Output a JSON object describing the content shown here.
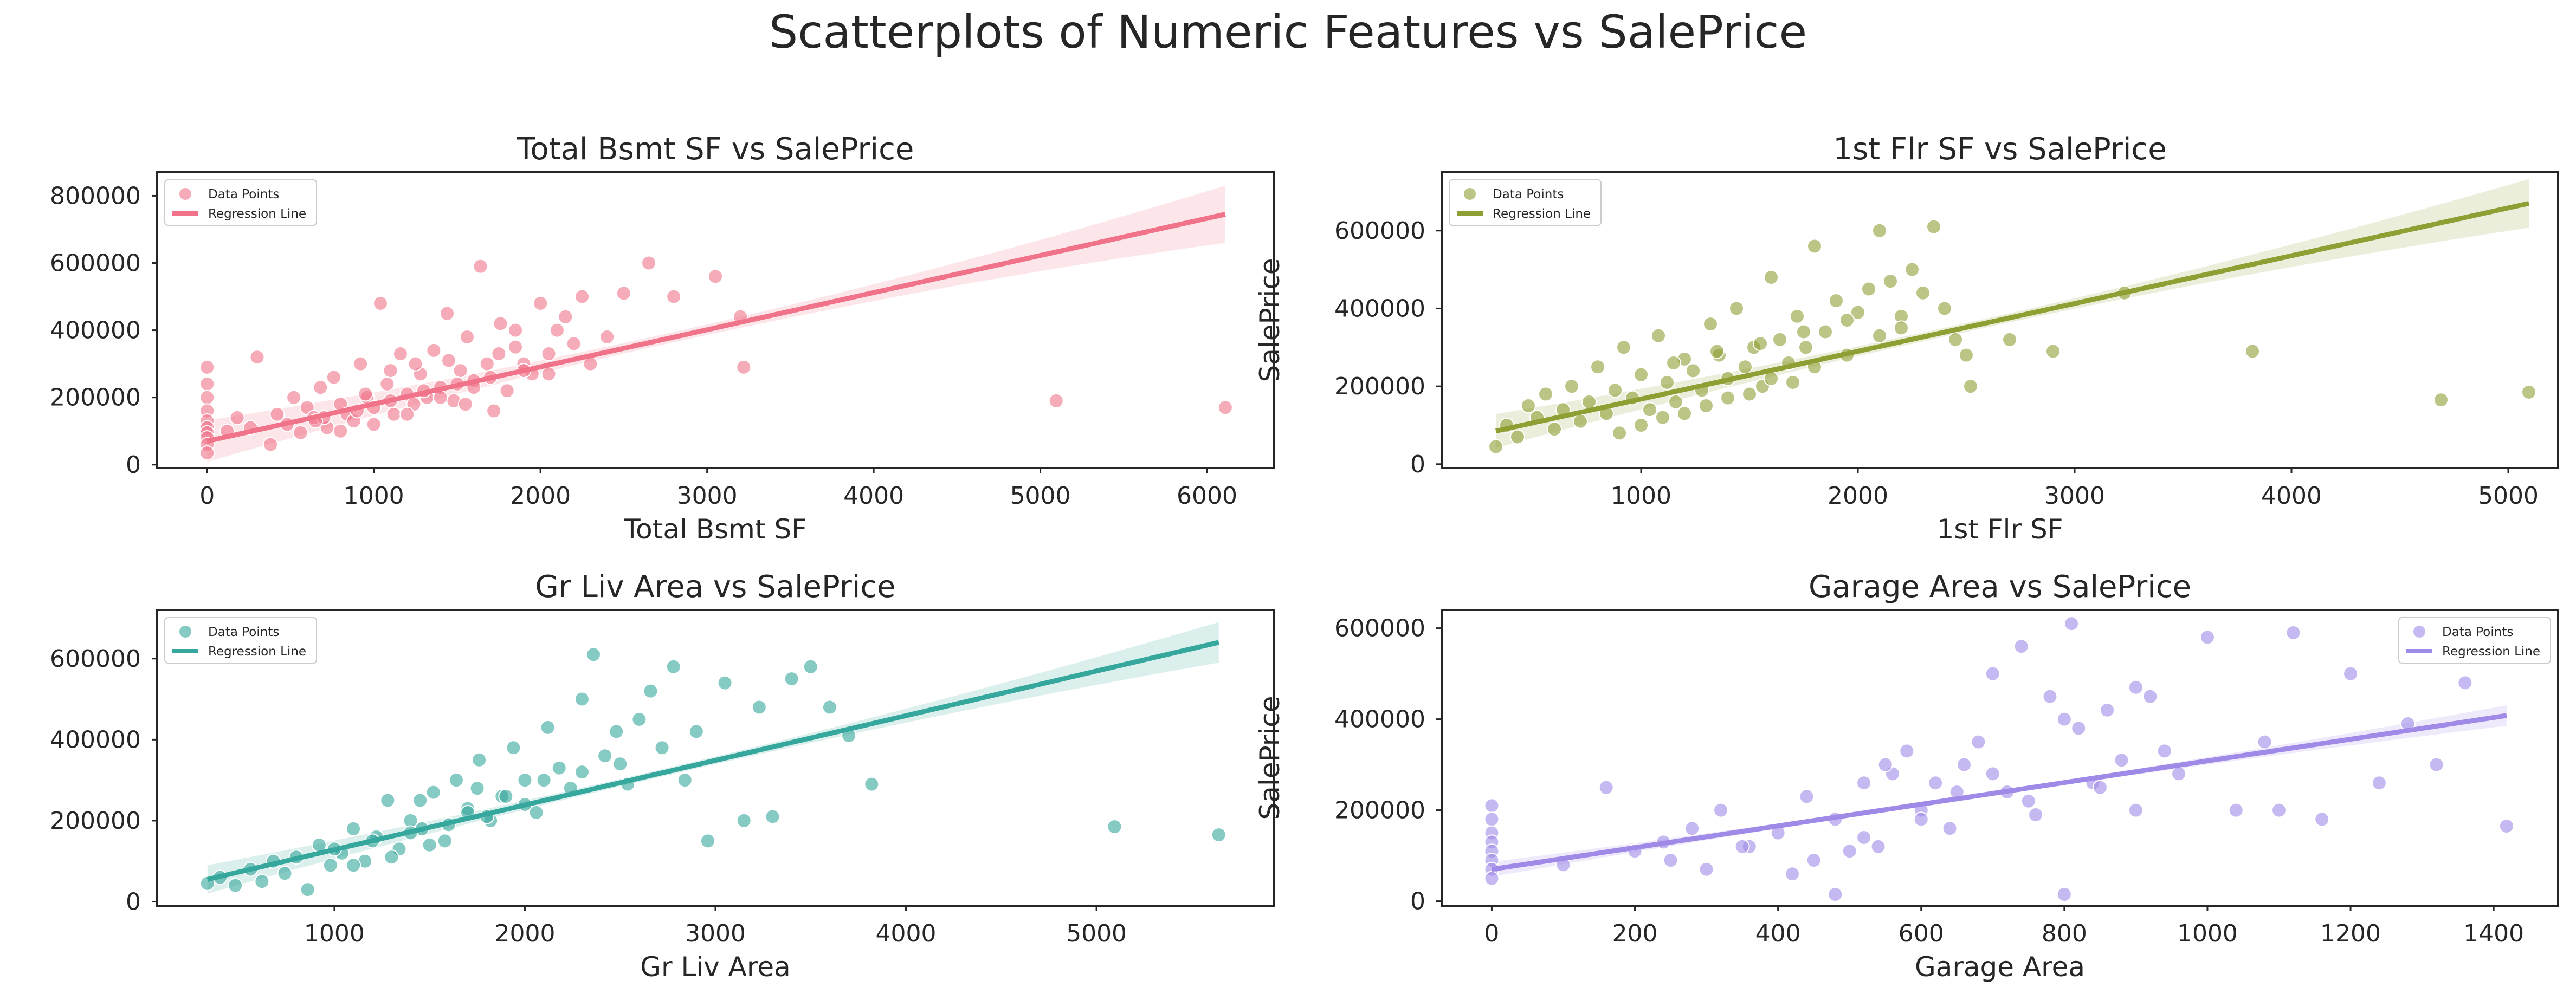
{
  "title": "Scatterplots of Numeric Features vs SalePrice",
  "chart_data": [
    {
      "type": "scatter",
      "title": "Total Bsmt SF vs SalePrice",
      "xlabel": "Total Bsmt SF",
      "ylabel": "SalePrice",
      "xlim": [
        -300,
        6400
      ],
      "ylim": [
        -10000,
        870000
      ],
      "xticks": [
        0,
        1000,
        2000,
        3000,
        4000,
        5000,
        6000
      ],
      "yticks": [
        0,
        200000,
        400000,
        600000,
        800000
      ],
      "color": "#f07389",
      "legend": {
        "position": "top-left",
        "entries": [
          "Data Points",
          "Regression Line"
        ]
      },
      "grid": false,
      "regression": {
        "x": [
          0,
          6110
        ],
        "y": [
          70000,
          745000
        ],
        "ci_at_end": [
          650000,
          820000
        ]
      },
      "series": [
        {
          "name": "Data Points",
          "x": [
            0,
            0,
            0,
            0,
            0,
            0,
            0,
            0,
            0,
            0,
            120,
            180,
            260,
            300,
            380,
            420,
            480,
            520,
            560,
            600,
            640,
            680,
            720,
            760,
            800,
            840,
            880,
            920,
            960,
            1000,
            1040,
            1080,
            1120,
            1160,
            1200,
            1240,
            1280,
            1320,
            1360,
            1400,
            1440,
            1480,
            1520,
            1560,
            1600,
            1640,
            1680,
            1720,
            1760,
            1800,
            1850,
            1900,
            1950,
            2000,
            2050,
            2100,
            2150,
            2200,
            2250,
            2300,
            2400,
            2500,
            2650,
            2800,
            3050,
            3200,
            3220,
            5095,
            6110,
            700,
            900,
            1100,
            1300,
            1500,
            1700,
            1900,
            1000,
            1200,
            1400,
            1600,
            800,
            1100,
            1450,
            1750,
            2050,
            650,
            950,
            1250,
            1550,
            1850
          ],
          "y": [
            290000,
            240000,
            200000,
            160000,
            130000,
            110000,
            95000,
            80000,
            60000,
            35000,
            100000,
            140000,
            110000,
            320000,
            60000,
            150000,
            120000,
            200000,
            95000,
            170000,
            140000,
            230000,
            110000,
            260000,
            180000,
            150000,
            130000,
            300000,
            200000,
            170000,
            480000,
            240000,
            150000,
            330000,
            210000,
            180000,
            270000,
            200000,
            340000,
            230000,
            450000,
            190000,
            280000,
            380000,
            250000,
            590000,
            300000,
            160000,
            420000,
            220000,
            350000,
            300000,
            270000,
            480000,
            330000,
            400000,
            440000,
            360000,
            500000,
            300000,
            380000,
            510000,
            600000,
            500000,
            560000,
            440000,
            290000,
            190000,
            170000,
            140000,
            160000,
            190000,
            220000,
            240000,
            260000,
            280000,
            120000,
            150000,
            200000,
            230000,
            100000,
            280000,
            310000,
            330000,
            270000,
            130000,
            210000,
            300000,
            180000,
            400000
          ]
        }
      ]
    },
    {
      "type": "scatter",
      "title": "1st Flr SF vs SalePrice",
      "xlabel": "1st Flr SF",
      "ylabel": "SalePrice",
      "xlim": [
        80,
        5230
      ],
      "ylim": [
        -10000,
        750000
      ],
      "xticks": [
        1000,
        2000,
        3000,
        4000,
        5000
      ],
      "yticks": [
        0,
        200000,
        400000,
        600000
      ],
      "color": "#8f9f34",
      "legend": {
        "position": "top-left",
        "entries": [
          "Data Points",
          "Regression Line"
        ]
      },
      "grid": false,
      "regression": {
        "x": [
          330,
          5095
        ],
        "y": [
          85000,
          670000
        ],
        "ci_at_end": [
          600000,
          725000
        ]
      },
      "series": [
        {
          "name": "Data Points",
          "x": [
            330,
            380,
            430,
            480,
            520,
            560,
            600,
            640,
            680,
            720,
            760,
            800,
            840,
            880,
            920,
            960,
            1000,
            1040,
            1080,
            1120,
            1160,
            1200,
            1240,
            1280,
            1320,
            1360,
            1400,
            1440,
            1480,
            1520,
            1560,
            1600,
            1640,
            1680,
            1720,
            1760,
            1800,
            1850,
            1900,
            1950,
            2000,
            2050,
            2100,
            2150,
            2200,
            2250,
            2300,
            2350,
            2400,
            2450,
            2500,
            2520,
            2700,
            2900,
            3230,
            3820,
            4690,
            5095,
            900,
            1100,
            1300,
            1500,
            1700,
            1000,
            1200,
            1400,
            1600,
            1800,
            1150,
            1350,
            1550,
            1750,
            1950,
            2100,
            2200
          ],
          "y": [
            45000,
            100000,
            70000,
            150000,
            120000,
            180000,
            90000,
            140000,
            200000,
            110000,
            160000,
            250000,
            130000,
            190000,
            300000,
            170000,
            230000,
            140000,
            330000,
            210000,
            160000,
            270000,
            240000,
            190000,
            360000,
            280000,
            220000,
            400000,
            250000,
            300000,
            200000,
            480000,
            320000,
            260000,
            380000,
            300000,
            560000,
            340000,
            420000,
            280000,
            390000,
            450000,
            600000,
            470000,
            380000,
            500000,
            440000,
            610000,
            400000,
            320000,
            280000,
            200000,
            320000,
            290000,
            440000,
            290000,
            165000,
            185000,
            80000,
            120000,
            150000,
            180000,
            210000,
            100000,
            130000,
            170000,
            220000,
            250000,
            260000,
            290000,
            310000,
            340000,
            370000,
            330000,
            350000
          ]
        }
      ]
    },
    {
      "type": "scatter",
      "title": "Gr Liv Area vs SalePrice",
      "xlabel": "Gr Liv Area",
      "ylabel": "SalePrice",
      "xlim": [
        70,
        5930
      ],
      "ylim": [
        -10000,
        720000
      ],
      "xticks": [
        1000,
        2000,
        3000,
        4000,
        5000
      ],
      "yticks": [
        0,
        200000,
        400000,
        600000
      ],
      "color": "#36a79d",
      "legend": {
        "position": "top-left",
        "entries": [
          "Data Points",
          "Regression Line"
        ]
      },
      "grid": false,
      "regression": {
        "x": [
          334,
          5642
        ],
        "y": [
          55000,
          640000
        ],
        "ci_at_end": [
          590000,
          690000
        ]
      },
      "series": [
        {
          "name": "Data Points",
          "x": [
            334,
            400,
            480,
            560,
            620,
            680,
            740,
            800,
            860,
            920,
            980,
            1040,
            1100,
            1160,
            1220,
            1280,
            1340,
            1400,
            1460,
            1520,
            1580,
            1640,
            1700,
            1760,
            1820,
            1880,
            1940,
            2000,
            2060,
            2120,
            2180,
            2240,
            2300,
            2360,
            2420,
            2480,
            2540,
            2600,
            2660,
            2720,
            2780,
            2840,
            2900,
            2960,
            3050,
            3150,
            3230,
            3300,
            3400,
            3500,
            3600,
            3700,
            3820,
            5095,
            5642,
            1000,
            1200,
            1400,
            1600,
            1800,
            2000,
            1300,
            1500,
            1700,
            1900,
            2100,
            2300,
            2500,
            1100,
            1450,
            1750
          ],
          "y": [
            45000,
            60000,
            40000,
            80000,
            50000,
            100000,
            70000,
            110000,
            30000,
            140000,
            90000,
            120000,
            180000,
            100000,
            160000,
            250000,
            130000,
            200000,
            180000,
            270000,
            150000,
            300000,
            230000,
            350000,
            200000,
            260000,
            380000,
            300000,
            220000,
            430000,
            330000,
            280000,
            500000,
            610000,
            360000,
            420000,
            290000,
            450000,
            520000,
            380000,
            580000,
            300000,
            420000,
            150000,
            540000,
            200000,
            480000,
            210000,
            550000,
            580000,
            480000,
            410000,
            290000,
            185000,
            165000,
            130000,
            150000,
            170000,
            190000,
            210000,
            240000,
            110000,
            140000,
            220000,
            260000,
            300000,
            320000,
            340000,
            90000,
            250000,
            280000
          ]
        }
      ]
    },
    {
      "type": "scatter",
      "title": "Garage Area vs SalePrice",
      "xlabel": "Garage Area",
      "ylabel": "SalePrice",
      "xlim": [
        -70,
        1490
      ],
      "ylim": [
        -10000,
        640000
      ],
      "xticks": [
        0,
        200,
        400,
        600,
        800,
        1000,
        1200,
        1400
      ],
      "yticks": [
        0,
        200000,
        400000,
        600000
      ],
      "color": "#a08ae8",
      "legend": {
        "position": "top-right",
        "entries": [
          "Data Points",
          "Regression Line"
        ]
      },
      "grid": false,
      "regression": {
        "x": [
          0,
          1418
        ],
        "y": [
          70000,
          408000
        ],
        "ci_at_end": [
          385000,
          430000
        ]
      },
      "series": [
        {
          "name": "Data Points",
          "x": [
            0,
            0,
            0,
            0,
            0,
            0,
            0,
            0,
            100,
            160,
            200,
            240,
            280,
            320,
            360,
            400,
            440,
            480,
            520,
            560,
            600,
            640,
            680,
            720,
            760,
            800,
            840,
            880,
            920,
            960,
            1000,
            1040,
            1080,
            1120,
            1160,
            1200,
            1240,
            1280,
            1320,
            1360,
            1418,
            250,
            300,
            350,
            420,
            450,
            500,
            550,
            580,
            620,
            660,
            700,
            740,
            780,
            820,
            860,
            900,
            940,
            480,
            540,
            600,
            650,
            700,
            750,
            800,
            850,
            900,
            520,
            810,
            1100
          ],
          "y": [
            210000,
            180000,
            150000,
            130000,
            110000,
            90000,
            70000,
            50000,
            80000,
            250000,
            110000,
            130000,
            160000,
            200000,
            120000,
            150000,
            230000,
            180000,
            140000,
            280000,
            200000,
            160000,
            350000,
            240000,
            190000,
            400000,
            260000,
            310000,
            450000,
            280000,
            580000,
            200000,
            350000,
            590000,
            180000,
            500000,
            260000,
            390000,
            300000,
            480000,
            165000,
            90000,
            70000,
            120000,
            60000,
            90000,
            110000,
            300000,
            330000,
            260000,
            300000,
            500000,
            560000,
            450000,
            380000,
            420000,
            470000,
            330000,
            15000,
            120000,
            180000,
            240000,
            280000,
            220000,
            15000,
            250000,
            200000,
            260000,
            610000,
            200000
          ]
        }
      ]
    }
  ]
}
